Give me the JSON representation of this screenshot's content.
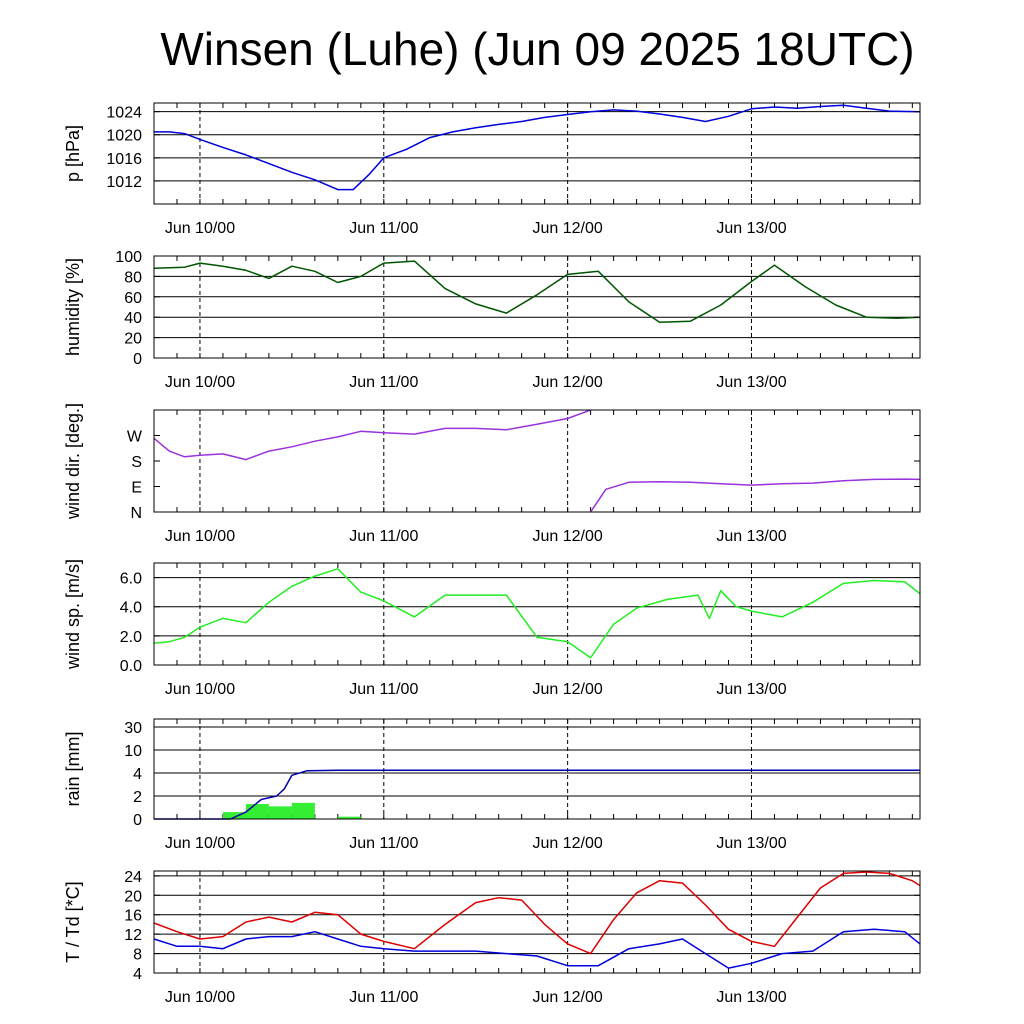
{
  "title": "Winsen (Luhe) (Jun 09 2025 18UTC)",
  "time_axis": {
    "start": "2025-06-09 18:00",
    "end": "2025-06-13 22:00",
    "day_ticks": [
      "2025-06-10 00:00",
      "2025-06-11 00:00",
      "2025-06-12 00:00",
      "2025-06-13 00:00"
    ],
    "day_tick_labels": [
      "Jun 10/00",
      "Jun 11/00",
      "Jun 12/00",
      "Jun 13/00"
    ]
  },
  "colors": {
    "pressure": "#0000dd",
    "humidity": "#005500",
    "wind_dir": "#9933dd",
    "wind_speed": "#22ee22",
    "rain_line": "#0000aa",
    "rain_bar": "#33ee33",
    "temperature": "#dd0000",
    "dewpoint": "#0000dd"
  },
  "chart_data": [
    {
      "type": "line",
      "name": "pressure",
      "ylabel": "p [hPa]",
      "ylim": [
        1008,
        1025.5
      ],
      "yticks": [
        1012,
        1016,
        1020,
        1024
      ],
      "ytick_labels": [
        "1012",
        "1016",
        "1020",
        "1024"
      ],
      "grid": true,
      "series": [
        {
          "x": [
            "2025-06-09 18:00",
            "2025-06-09 20:00",
            "2025-06-09 22:00",
            "2025-06-10 00:00",
            "2025-06-10 03:00",
            "2025-06-10 06:00",
            "2025-06-10 09:00",
            "2025-06-10 12:00",
            "2025-06-10 15:00",
            "2025-06-10 18:00",
            "2025-06-10 20:00",
            "2025-06-10 22:00",
            "2025-06-11 00:00",
            "2025-06-11 03:00",
            "2025-06-11 06:00",
            "2025-06-11 09:00",
            "2025-06-11 12:00",
            "2025-06-11 15:00",
            "2025-06-11 18:00",
            "2025-06-11 21:00",
            "2025-06-12 00:00",
            "2025-06-12 03:00",
            "2025-06-12 06:00",
            "2025-06-12 09:00",
            "2025-06-12 12:00",
            "2025-06-12 15:00",
            "2025-06-12 18:00",
            "2025-06-12 21:00",
            "2025-06-13 00:00",
            "2025-06-13 03:00",
            "2025-06-13 06:00",
            "2025-06-13 09:00",
            "2025-06-13 12:00",
            "2025-06-13 15:00",
            "2025-06-13 18:00",
            "2025-06-13 22:00"
          ],
          "values": [
            1020.5,
            1020.5,
            1020.2,
            1019.2,
            1017.8,
            1016.5,
            1015,
            1013.5,
            1012.2,
            1010.5,
            1010.5,
            1013,
            1016,
            1017.5,
            1019.5,
            1020.5,
            1021.2,
            1021.8,
            1022.3,
            1023,
            1023.5,
            1024,
            1024.3,
            1024.1,
            1023.6,
            1023.0,
            1022.3,
            1023.2,
            1024.5,
            1024.8,
            1024.6,
            1024.9,
            1025.1,
            1024.6,
            1024.1,
            1024.0
          ]
        }
      ]
    },
    {
      "type": "line",
      "name": "humidity",
      "ylabel": "humidity [%]",
      "ylim": [
        0,
        100
      ],
      "yticks": [
        0,
        20,
        40,
        60,
        80,
        100
      ],
      "ytick_labels": [
        "0",
        "20",
        "40",
        "60",
        "80",
        "100"
      ],
      "grid": true,
      "series": [
        {
          "x": [
            "2025-06-09 18:00",
            "2025-06-09 22:00",
            "2025-06-10 00:00",
            "2025-06-10 03:00",
            "2025-06-10 06:00",
            "2025-06-10 09:00",
            "2025-06-10 12:00",
            "2025-06-10 15:00",
            "2025-06-10 18:00",
            "2025-06-10 21:00",
            "2025-06-11 00:00",
            "2025-06-11 04:00",
            "2025-06-11 08:00",
            "2025-06-11 12:00",
            "2025-06-11 16:00",
            "2025-06-11 20:00",
            "2025-06-12 00:00",
            "2025-06-12 04:00",
            "2025-06-12 08:00",
            "2025-06-12 12:00",
            "2025-06-12 16:00",
            "2025-06-12 20:00",
            "2025-06-13 00:00",
            "2025-06-13 03:00",
            "2025-06-13 07:00",
            "2025-06-13 11:00",
            "2025-06-13 15:00",
            "2025-06-13 19:00",
            "2025-06-13 22:00"
          ],
          "values": [
            88,
            89,
            93,
            90,
            86,
            78,
            90,
            85,
            74,
            80,
            93,
            95,
            68,
            53,
            44,
            62,
            82,
            85,
            55,
            35,
            36,
            52,
            75,
            91,
            70,
            52,
            40,
            39,
            40
          ]
        }
      ]
    },
    {
      "type": "line",
      "name": "wind_direction",
      "ylabel": "wind dir. [deg.]",
      "ylim": [
        0,
        360
      ],
      "yticks": [
        0,
        90,
        180,
        270
      ],
      "ytick_labels": [
        "N",
        "E",
        "S",
        "W"
      ],
      "grid": false,
      "series": [
        {
          "segments": [
            {
              "x": [
                "2025-06-09 18:00",
                "2025-06-09 20:00",
                "2025-06-09 22:00",
                "2025-06-10 00:00",
                "2025-06-10 03:00",
                "2025-06-10 06:00",
                "2025-06-10 09:00",
                "2025-06-10 12:00",
                "2025-06-10 15:00",
                "2025-06-10 18:00",
                "2025-06-10 21:00",
                "2025-06-11 00:00",
                "2025-06-11 04:00",
                "2025-06-11 08:00",
                "2025-06-11 12:00",
                "2025-06-11 16:00",
                "2025-06-11 20:00",
                "2025-06-12 00:00",
                "2025-06-12 02:00",
                "2025-06-12 03:00"
              ],
              "values": [
                260,
                215,
                195,
                200,
                205,
                185,
                215,
                230,
                250,
                265,
                285,
                280,
                275,
                295,
                295,
                290,
                310,
                330,
                350,
                365
              ]
            },
            {
              "x": [
                "2025-06-12 03:00",
                "2025-06-12 05:00",
                "2025-06-12 08:00",
                "2025-06-12 12:00",
                "2025-06-12 16:00",
                "2025-06-12 20:00",
                "2025-06-13 00:00",
                "2025-06-13 04:00",
                "2025-06-13 08:00",
                "2025-06-13 12:00",
                "2025-06-13 16:00",
                "2025-06-13 20:00",
                "2025-06-13 22:00"
              ],
              "values": [
                0,
                80,
                105,
                107,
                105,
                100,
                95,
                100,
                102,
                110,
                115,
                116,
                115
              ]
            }
          ]
        }
      ]
    },
    {
      "type": "line",
      "name": "wind_speed",
      "ylabel": "wind sp. [m/s]",
      "ylim": [
        0,
        7
      ],
      "yticks": [
        0,
        2,
        4,
        6
      ],
      "ytick_labels": [
        "0.0",
        "2.0",
        "4.0",
        "6.0"
      ],
      "grid": true,
      "series": [
        {
          "x": [
            "2025-06-09 18:00",
            "2025-06-09 20:00",
            "2025-06-09 22:00",
            "2025-06-10 00:00",
            "2025-06-10 03:00",
            "2025-06-10 06:00",
            "2025-06-10 09:00",
            "2025-06-10 12:00",
            "2025-06-10 15:00",
            "2025-06-10 18:00",
            "2025-06-10 21:00",
            "2025-06-11 00:00",
            "2025-06-11 04:00",
            "2025-06-11 08:00",
            "2025-06-11 12:00",
            "2025-06-11 16:00",
            "2025-06-11 20:00",
            "2025-06-12 00:00",
            "2025-06-12 03:00",
            "2025-06-12 06:00",
            "2025-06-12 09:00",
            "2025-06-12 13:00",
            "2025-06-12 17:00",
            "2025-06-12 18:30",
            "2025-06-12 20:00",
            "2025-06-12 22:00",
            "2025-06-13 00:00",
            "2025-06-13 04:00",
            "2025-06-13 08:00",
            "2025-06-13 12:00",
            "2025-06-13 16:00",
            "2025-06-13 20:00",
            "2025-06-13 22:00"
          ],
          "values": [
            1.5,
            1.6,
            1.9,
            2.6,
            3.2,
            2.9,
            4.3,
            5.4,
            6.1,
            6.6,
            5.0,
            4.4,
            3.3,
            4.8,
            4.8,
            4.8,
            1.9,
            1.6,
            0.5,
            2.8,
            3.9,
            4.5,
            4.8,
            3.2,
            5.1,
            4.0,
            3.7,
            3.3,
            4.3,
            5.6,
            5.8,
            5.7,
            4.9
          ]
        }
      ]
    },
    {
      "type": "bar",
      "name": "rain",
      "ylabel": "rain [mm]",
      "yticks": [
        0,
        2,
        4,
        10,
        30
      ],
      "ytick_labels": [
        "0",
        "2",
        "4",
        "10",
        "30"
      ],
      "grid": true,
      "bars": {
        "start": [
          "2025-06-10 03:00",
          "2025-06-10 06:00",
          "2025-06-10 09:00",
          "2025-06-10 12:00",
          "2025-06-10 18:00"
        ],
        "end": [
          "2025-06-10 06:00",
          "2025-06-10 09:00",
          "2025-06-10 12:00",
          "2025-06-10 15:00",
          "2025-06-10 21:00"
        ],
        "values": [
          0.6,
          1.3,
          1.1,
          1.4,
          0.2
        ]
      },
      "series": [
        {
          "x": [
            "2025-06-09 18:00",
            "2025-06-10 04:00",
            "2025-06-10 06:00",
            "2025-06-10 08:00",
            "2025-06-10 10:00",
            "2025-06-10 11:00",
            "2025-06-10 12:00",
            "2025-06-10 14:00",
            "2025-06-10 18:00",
            "2025-06-11 00:00",
            "2025-06-11 12:00",
            "2025-06-12 00:00",
            "2025-06-13 00:00",
            "2025-06-13 22:00"
          ],
          "values": [
            0,
            0,
            0.6,
            1.7,
            2.0,
            2.6,
            3.8,
            4.6,
            4.7,
            4.7,
            4.7,
            4.7,
            4.7,
            4.7
          ]
        }
      ]
    },
    {
      "type": "line",
      "name": "temperature_dewpoint",
      "ylabel": "T / Td [*C]",
      "ylim": [
        4,
        25
      ],
      "yticks": [
        4,
        8,
        12,
        16,
        20,
        24
      ],
      "ytick_labels": [
        "4",
        "8",
        "12",
        "16",
        "20",
        "24"
      ],
      "grid": true,
      "series": [
        {
          "name": "T",
          "x": [
            "2025-06-09 18:00",
            "2025-06-09 21:00",
            "2025-06-10 00:00",
            "2025-06-10 03:00",
            "2025-06-10 06:00",
            "2025-06-10 09:00",
            "2025-06-10 12:00",
            "2025-06-10 15:00",
            "2025-06-10 18:00",
            "2025-06-10 21:00",
            "2025-06-11 00:00",
            "2025-06-11 04:00",
            "2025-06-11 08:00",
            "2025-06-11 12:00",
            "2025-06-11 15:00",
            "2025-06-11 18:00",
            "2025-06-11 21:00",
            "2025-06-12 00:00",
            "2025-06-12 03:00",
            "2025-06-12 06:00",
            "2025-06-12 09:00",
            "2025-06-12 12:00",
            "2025-06-12 15:00",
            "2025-06-12 18:00",
            "2025-06-12 21:00",
            "2025-06-13 00:00",
            "2025-06-13 03:00",
            "2025-06-13 06:00",
            "2025-06-13 09:00",
            "2025-06-13 12:00",
            "2025-06-13 15:00",
            "2025-06-13 18:00",
            "2025-06-13 21:00",
            "2025-06-13 22:00"
          ],
          "values": [
            14.3,
            12.5,
            11.0,
            11.5,
            14.5,
            15.5,
            14.5,
            16.5,
            16.0,
            12.0,
            10.5,
            9.0,
            14.0,
            18.5,
            19.5,
            19.0,
            14.0,
            10.0,
            8.0,
            15.0,
            20.5,
            23.0,
            22.5,
            18.0,
            13.0,
            10.5,
            9.5,
            15.5,
            21.5,
            24.5,
            24.8,
            24.5,
            23.0,
            22.0
          ]
        },
        {
          "name": "Td",
          "x": [
            "2025-06-09 18:00",
            "2025-06-09 21:00",
            "2025-06-10 00:00",
            "2025-06-10 03:00",
            "2025-06-10 06:00",
            "2025-06-10 09:00",
            "2025-06-10 12:00",
            "2025-06-10 15:00",
            "2025-06-10 18:00",
            "2025-06-10 21:00",
            "2025-06-11 00:00",
            "2025-06-11 04:00",
            "2025-06-11 08:00",
            "2025-06-11 12:00",
            "2025-06-11 16:00",
            "2025-06-11 20:00",
            "2025-06-12 00:00",
            "2025-06-12 04:00",
            "2025-06-12 08:00",
            "2025-06-12 12:00",
            "2025-06-12 15:00",
            "2025-06-12 18:00",
            "2025-06-12 21:00",
            "2025-06-13 00:00",
            "2025-06-13 04:00",
            "2025-06-13 08:00",
            "2025-06-13 12:00",
            "2025-06-13 16:00",
            "2025-06-13 20:00",
            "2025-06-13 22:00"
          ],
          "values": [
            11.0,
            9.5,
            9.5,
            9.0,
            11.0,
            11.5,
            11.5,
            12.5,
            11.0,
            9.5,
            9.0,
            8.5,
            8.5,
            8.5,
            8.0,
            7.5,
            5.5,
            5.5,
            9.0,
            10.0,
            11.0,
            8.0,
            5.0,
            6.0,
            8.0,
            8.5,
            12.5,
            13.0,
            12.5,
            10.0
          ]
        }
      ]
    }
  ]
}
